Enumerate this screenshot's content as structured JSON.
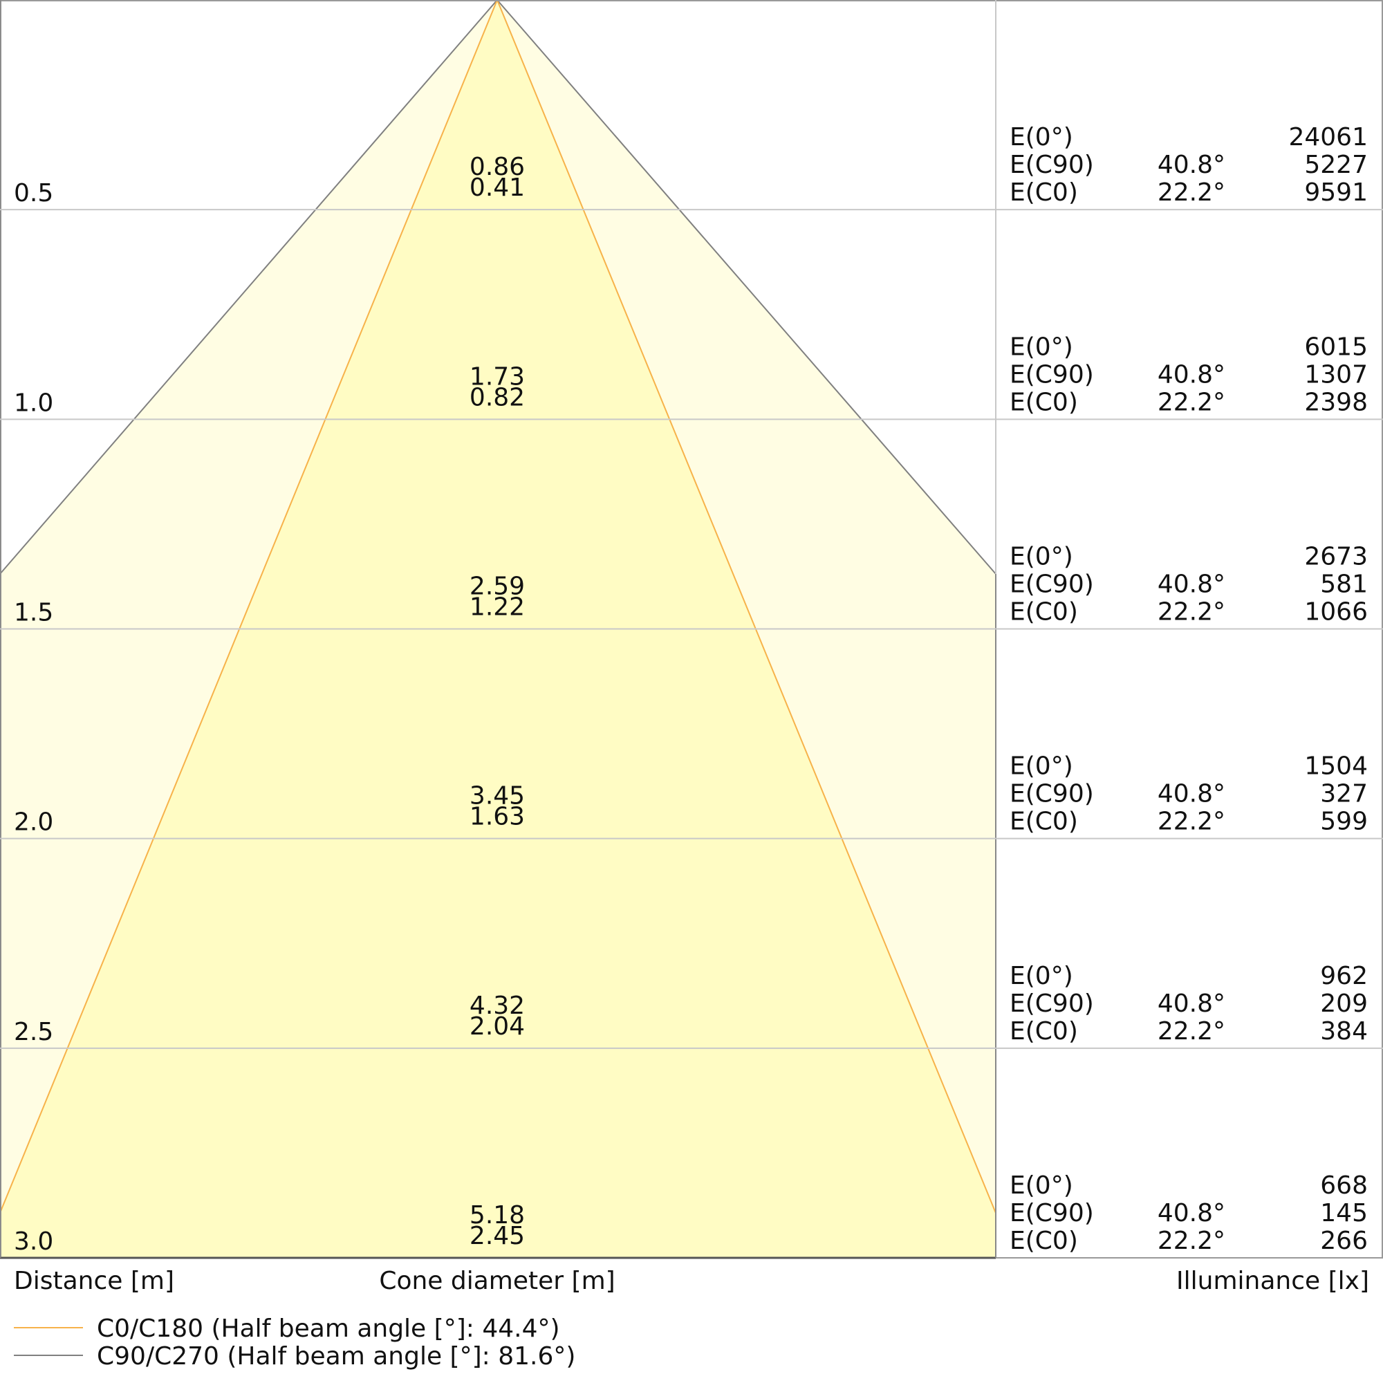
{
  "chart_data": {
    "type": "cone-diagram",
    "xlabel_left": "Distance [m]",
    "xlabel_center": "Cone diameter [m]",
    "xlabel_right": "Illuminance [lx]",
    "distance_range": [
      0,
      3.0
    ],
    "grid": true,
    "colors": {
      "c0": "#f7b24a",
      "c90": "#808080",
      "inner_fill": "#fffcc4",
      "outer_fill": "#fffde3",
      "grid": "#c8c8c8"
    },
    "legend": [
      {
        "label": "C0/C180 (Half beam angle [°]: 44.4°)",
        "color": "#f7b24a"
      },
      {
        "label": "C90/C270 (Half beam angle [°]: 81.6°)",
        "color": "#808080"
      }
    ],
    "row_labels": [
      "E(0°)",
      "E(C90)",
      "E(C0)"
    ],
    "angle_c90": "40.8°",
    "angle_c0": "22.2°",
    "rows": [
      {
        "distance": "0.5",
        "diameter_c90": "0.86",
        "diameter_c0": "0.41",
        "e0": "24061",
        "ec90": "5227",
        "ec0": "9591"
      },
      {
        "distance": "1.0",
        "diameter_c90": "1.73",
        "diameter_c0": "0.82",
        "e0": "6015",
        "ec90": "1307",
        "ec0": "2398"
      },
      {
        "distance": "1.5",
        "diameter_c90": "2.59",
        "diameter_c0": "1.22",
        "e0": "2673",
        "ec90": "581",
        "ec0": "1066"
      },
      {
        "distance": "2.0",
        "diameter_c90": "3.45",
        "diameter_c0": "1.63",
        "e0": "1504",
        "ec90": "327",
        "ec0": "599"
      },
      {
        "distance": "2.5",
        "diameter_c90": "4.32",
        "diameter_c0": "2.04",
        "e0": "962",
        "ec90": "209",
        "ec0": "384"
      },
      {
        "distance": "3.0",
        "diameter_c90": "5.18",
        "diameter_c0": "2.45",
        "e0": "668",
        "ec90": "145",
        "ec0": "266"
      }
    ]
  }
}
